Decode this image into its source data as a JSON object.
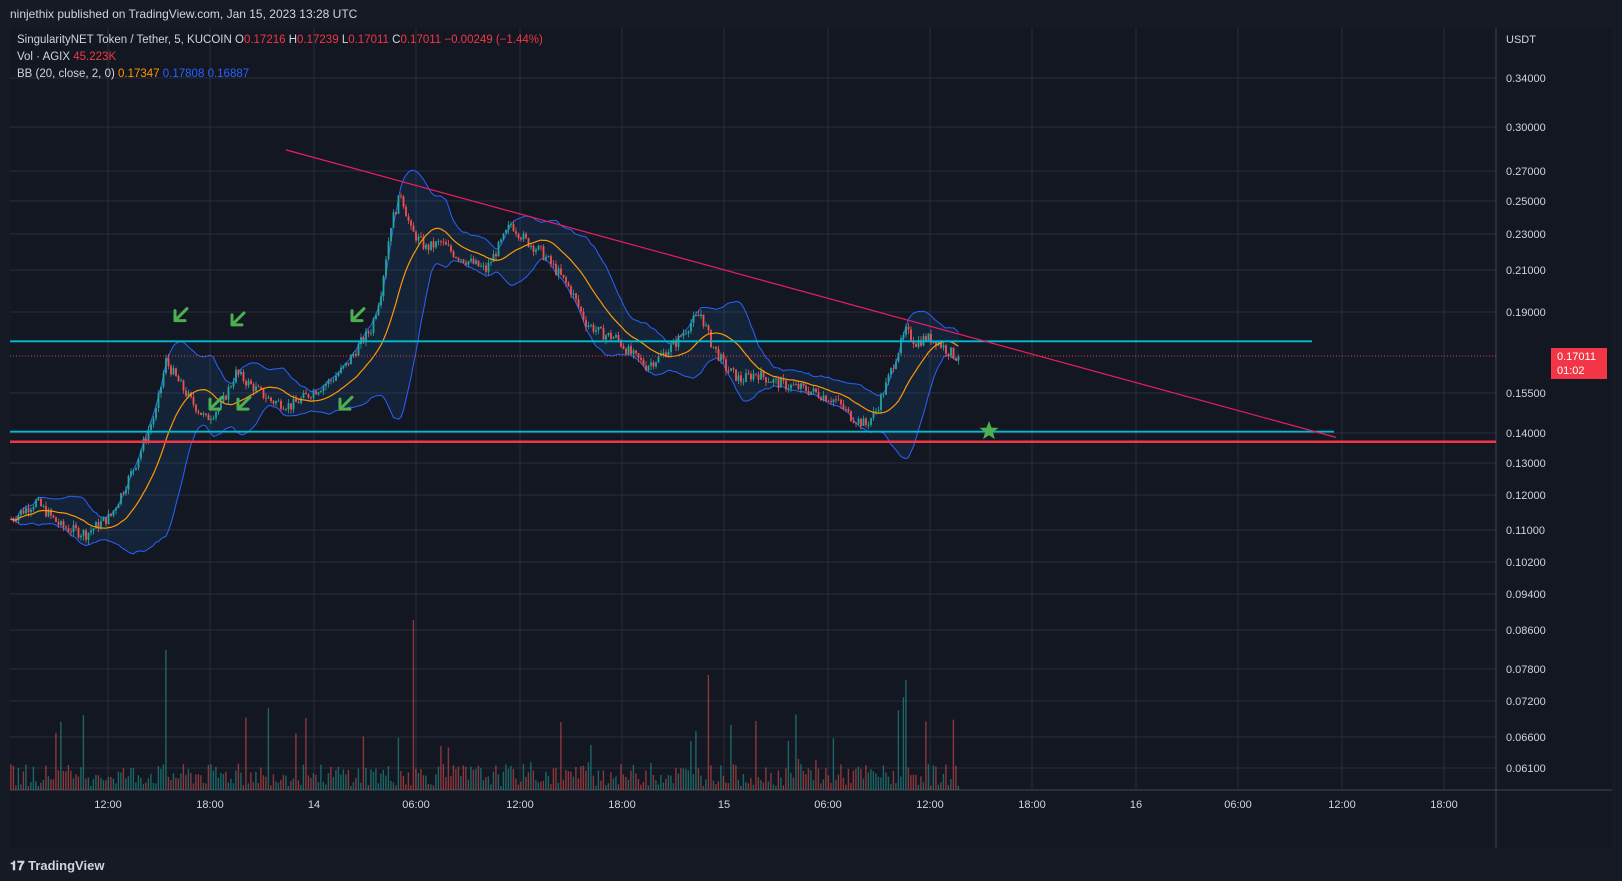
{
  "header": {
    "published_by": "ninjethix published on TradingView.com, Jan 15, 2023 13:28 UTC"
  },
  "legend": {
    "symbol": "SingularityNET Token / Tether, 5, KUCOIN",
    "ohlc": [
      {
        "label": "O",
        "value": "0.17216"
      },
      {
        "label": "H",
        "value": "0.17239"
      },
      {
        "label": "L",
        "value": "0.17011"
      },
      {
        "label": "C",
        "value": "0.17011"
      }
    ],
    "change": "−0.00249 (−1.44%)",
    "volume_label": "Vol · AGIX",
    "volume_value": "45.223K",
    "bb_label": "BB (20, close, 2, 0)",
    "bb_basis": "0.17347",
    "bb_upper": "0.17808",
    "bb_lower": "0.16887"
  },
  "price_tag": {
    "price": "0.17011",
    "countdown": "01:02"
  },
  "footer": {
    "brand": "TradingView"
  },
  "colors": {
    "up": "#26a69a",
    "down": "#ef5350",
    "bb_basis": "#ff9800",
    "bb_band": "#2962ff",
    "support_line": "#00bcd4",
    "red_line": "#f23645",
    "trend_line": "#e91e63",
    "arrow": "#4caf50"
  },
  "chart_data": {
    "type": "candlestick",
    "y_axis": {
      "unit": "USDT",
      "scale": "log",
      "ticks": [
        "0.34000",
        "0.30000",
        "0.27000",
        "0.25000",
        "0.23000",
        "0.21000",
        "0.19000",
        "0.15500",
        "0.14000",
        "0.13000",
        "0.12000",
        "0.11000",
        "0.10200",
        "0.09400",
        "0.08600",
        "0.07800",
        "0.07200",
        "0.06600",
        "0.06100"
      ]
    },
    "x_axis": {
      "ticks": [
        "12:00",
        "18:00",
        "14",
        "06:00",
        "12:00",
        "18:00",
        "15",
        "06:00",
        "12:00",
        "18:00",
        "16",
        "06:00",
        "12:00",
        "18:00"
      ]
    },
    "last_price": 0.17011,
    "price_path": [
      [
        0,
        0.113
      ],
      [
        10,
        0.118
      ],
      [
        20,
        0.111
      ],
      [
        30,
        0.109
      ],
      [
        40,
        0.114
      ],
      [
        50,
        0.13
      ],
      [
        58,
        0.148
      ],
      [
        62,
        0.168
      ],
      [
        66,
        0.161
      ],
      [
        72,
        0.152
      ],
      [
        78,
        0.145
      ],
      [
        84,
        0.15
      ],
      [
        90,
        0.163
      ],
      [
        96,
        0.158
      ],
      [
        104,
        0.152
      ],
      [
        112,
        0.15
      ],
      [
        120,
        0.155
      ],
      [
        128,
        0.16
      ],
      [
        134,
        0.166
      ],
      [
        140,
        0.176
      ],
      [
        144,
        0.182
      ],
      [
        148,
        0.2
      ],
      [
        152,
        0.236
      ],
      [
        156,
        0.255
      ],
      [
        160,
        0.232
      ],
      [
        166,
        0.222
      ],
      [
        172,
        0.225
      ],
      [
        178,
        0.218
      ],
      [
        184,
        0.214
      ],
      [
        190,
        0.21
      ],
      [
        196,
        0.225
      ],
      [
        200,
        0.236
      ],
      [
        206,
        0.226
      ],
      [
        212,
        0.22
      ],
      [
        218,
        0.21
      ],
      [
        224,
        0.2
      ],
      [
        230,
        0.185
      ],
      [
        236,
        0.18
      ],
      [
        242,
        0.178
      ],
      [
        248,
        0.171
      ],
      [
        254,
        0.166
      ],
      [
        260,
        0.17
      ],
      [
        266,
        0.176
      ],
      [
        272,
        0.185
      ],
      [
        276,
        0.189
      ],
      [
        280,
        0.176
      ],
      [
        286,
        0.165
      ],
      [
        292,
        0.16
      ],
      [
        298,
        0.163
      ],
      [
        304,
        0.16
      ],
      [
        310,
        0.158
      ],
      [
        316,
        0.157
      ],
      [
        322,
        0.155
      ],
      [
        330,
        0.152
      ],
      [
        336,
        0.146
      ],
      [
        342,
        0.143
      ],
      [
        346,
        0.148
      ],
      [
        350,
        0.158
      ],
      [
        354,
        0.17
      ],
      [
        358,
        0.181
      ],
      [
        362,
        0.176
      ],
      [
        366,
        0.178
      ],
      [
        370,
        0.177
      ],
      [
        374,
        0.173
      ],
      [
        378,
        0.17
      ]
    ],
    "horizontal_levels": [
      {
        "price": 0.1765,
        "label": "resistance",
        "color": "#00bcd4"
      },
      {
        "price": 0.1405,
        "label": "support",
        "color": "#00bcd4"
      },
      {
        "price": 0.137,
        "label": "support",
        "color": "#f23645"
      }
    ],
    "trend_line": {
      "from": [
        110,
        0.284
      ],
      "to": [
        530,
        0.1385
      ]
    },
    "markers": {
      "arrows_price": [
        0.185,
        0.183,
        0.185,
        0.148,
        0.148,
        0.148
      ],
      "star": {
        "bar": 390,
        "price": 0.14
      }
    },
    "volume_bars_count": 380
  }
}
